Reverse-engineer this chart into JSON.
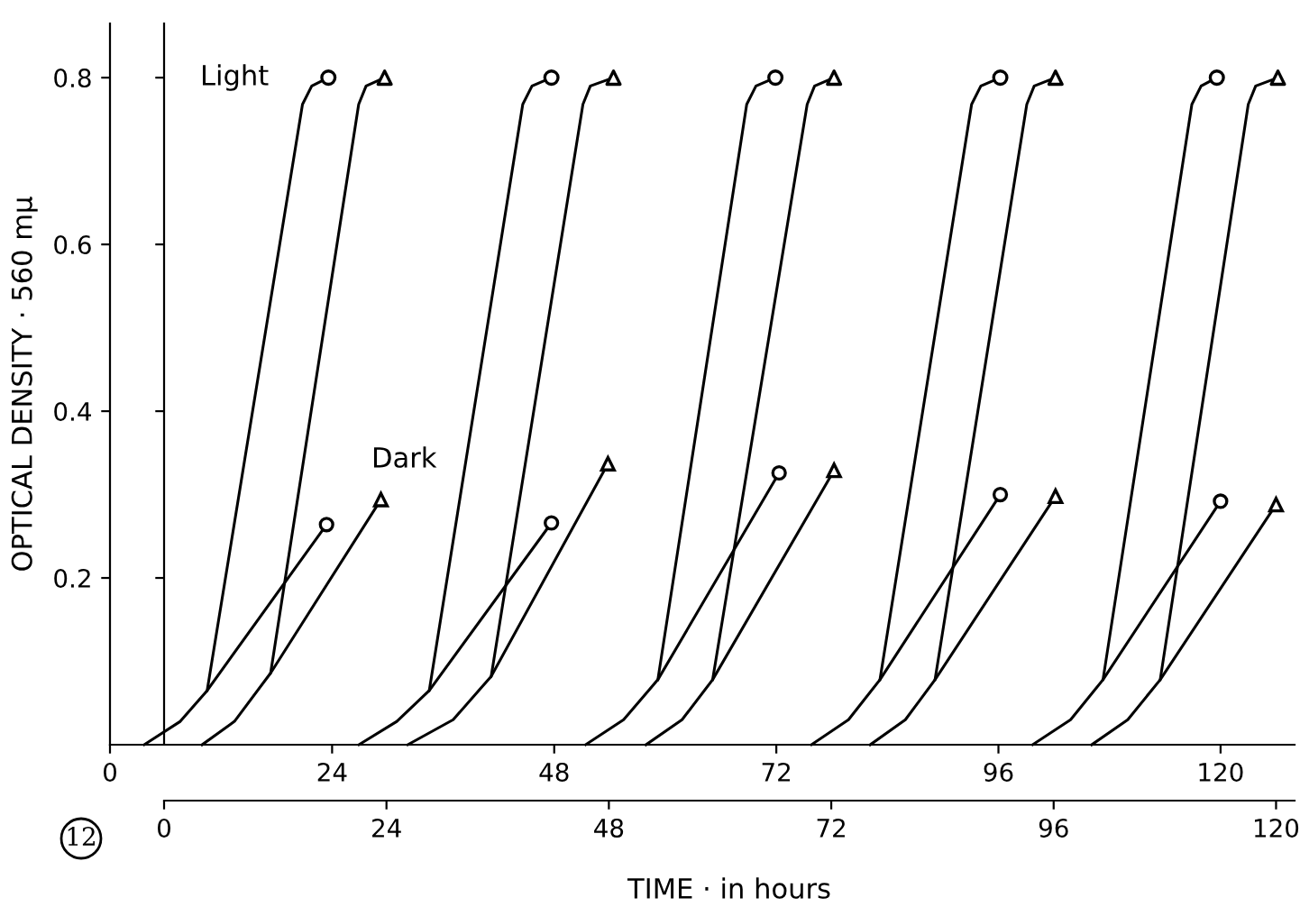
{
  "chart_data": {
    "type": "line",
    "ylabel": "OPTICAL DENSITY · 560 mμ",
    "x2label": "TIME · in hours",
    "xlim": [
      0,
      128
    ],
    "xticks": [
      0,
      24,
      48,
      72,
      96,
      120
    ],
    "x2lim": [
      0,
      122
    ],
    "x2ticks": [
      0,
      24,
      48,
      72,
      96,
      120
    ],
    "ylim": [
      0,
      0.865
    ],
    "yticks": [
      0.2,
      0.4,
      0.6,
      0.8
    ],
    "legend": false,
    "annotations": [
      "Light",
      "Dark",
      "12"
    ],
    "series": [
      {
        "type": "scatter",
        "marker": "circle",
        "color": "#000000",
        "x": [
          23.6,
          47.7,
          71.9,
          96.2,
          119.6
        ],
        "values": [
          0.8,
          0.8,
          0.8,
          0.8,
          0.8
        ]
      },
      {
        "type": "scatter",
        "axis": "x2",
        "marker": "triangle",
        "color": "#000000",
        "x": [
          23.8,
          48.5,
          72.3,
          96.2,
          120.2
        ],
        "values": [
          0.8,
          0.8,
          0.8,
          0.8,
          0.8
        ]
      },
      {
        "marker": "none",
        "color": "#000000",
        "x": [
          3.7,
          7.6,
          10.5,
          20.8,
          21.8,
          23.6,
          null,
          26.9,
          31,
          34.5,
          44.6,
          45.6,
          47.7,
          null,
          51.4,
          55.5,
          59.2,
          68.8,
          69.8,
          71.9,
          null,
          75.8,
          79.8,
          83.2,
          93.1,
          94.1,
          96.2,
          null,
          99.7,
          103.8,
          107.3,
          116.9,
          117.9,
          119.6
        ],
        "values": [
          0,
          0.028,
          0.065,
          0.768,
          0.79,
          0.8,
          null,
          0,
          0.028,
          0.065,
          0.768,
          0.79,
          0.8,
          null,
          0,
          0.03,
          0.078,
          0.768,
          0.79,
          0.8,
          null,
          0,
          0.03,
          0.078,
          0.768,
          0.79,
          0.8,
          null,
          0,
          0.03,
          0.078,
          0.768,
          0.79,
          0.8
        ]
      },
      {
        "axis": "x2",
        "marker": "none",
        "color": "#000000",
        "x": [
          4.1,
          7.6,
          11.5,
          21.0,
          21.8,
          23.8,
          null,
          26.3,
          31.2,
          35.3,
          45.2,
          46.0,
          48.5,
          null,
          52.0,
          55.9,
          59.2,
          69.4,
          70.2,
          72.3,
          null,
          76.2,
          80,
          83.2,
          93.1,
          93.9,
          96.2,
          null,
          100.1,
          104,
          107.5,
          117.0,
          117.8,
          120.2
        ],
        "values": [
          0,
          0.028,
          0.086,
          0.768,
          0.79,
          0.8,
          null,
          0,
          0.03,
          0.082,
          0.768,
          0.79,
          0.8,
          null,
          0,
          0.03,
          0.078,
          0.768,
          0.79,
          0.8,
          null,
          0,
          0.03,
          0.078,
          0.768,
          0.79,
          0.8,
          null,
          0,
          0.03,
          0.078,
          0.768,
          0.79,
          0.8
        ]
      },
      {
        "marker": "circle",
        "color": "#000000",
        "x": [
          10.5,
          23.4,
          null,
          34.5,
          47.7,
          null,
          59.2,
          72.3,
          null,
          83.2,
          96.2,
          null,
          107.3,
          120.0
        ],
        "values": [
          0.065,
          0.264,
          null,
          0.065,
          0.266,
          null,
          0.078,
          0.326,
          null,
          0.078,
          0.3,
          null,
          0.078,
          0.292
        ]
      },
      {
        "axis": "x2",
        "marker": "triangle",
        "color": "#000000",
        "x": [
          11.5,
          23.4,
          null,
          35.3,
          47.9,
          null,
          59.2,
          72.3,
          null,
          83.2,
          96.2,
          null,
          107.5,
          120.0
        ],
        "values": [
          0.086,
          0.294,
          null,
          0.082,
          0.337,
          null,
          0.078,
          0.329,
          null,
          0.078,
          0.298,
          null,
          0.078,
          0.288
        ]
      }
    ]
  }
}
